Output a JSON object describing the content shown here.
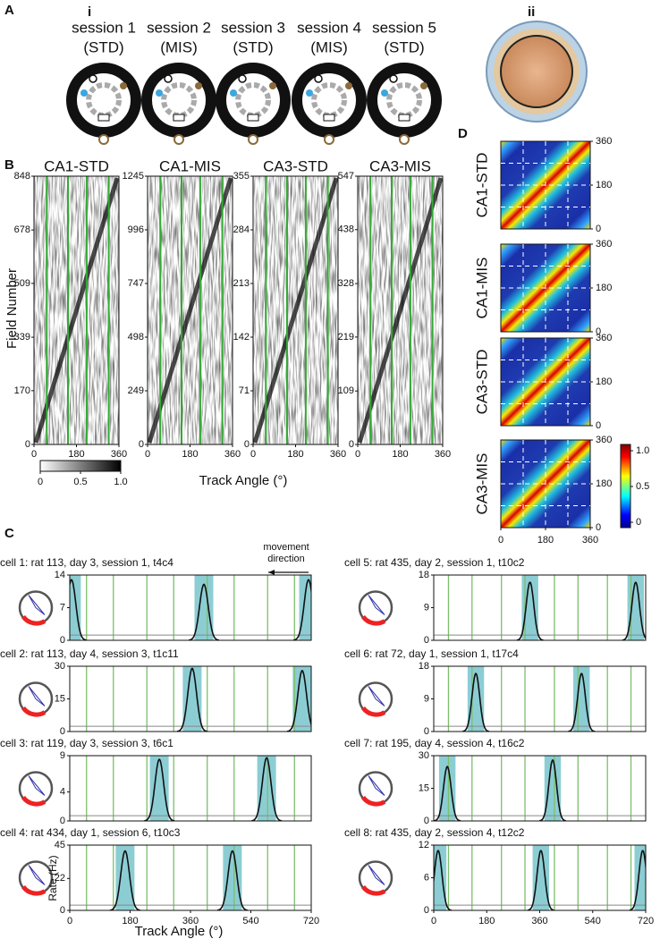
{
  "panel_labels": [
    "A",
    "B",
    "C",
    "D"
  ],
  "sub_labels": [
    "i",
    "ii"
  ],
  "panel_a": {
    "sessions": [
      {
        "name": "session 1",
        "condition": "(STD)"
      },
      {
        "name": "session 2",
        "condition": "(MIS)"
      },
      {
        "name": "session 3",
        "condition": "(STD)"
      },
      {
        "name": "session 4",
        "condition": "(MIS)"
      },
      {
        "name": "session 5",
        "condition": "(STD)"
      }
    ]
  },
  "panel_b": {
    "y_label": "Field Number",
    "x_label": "Track Angle (°)",
    "xticks": [
      0,
      180,
      360
    ],
    "rasters": [
      {
        "title": "CA1-STD",
        "yticks": [
          0,
          170,
          339,
          509,
          678,
          848
        ]
      },
      {
        "title": "CA1-MIS",
        "yticks": [
          0,
          249,
          498,
          747,
          996,
          1245
        ]
      },
      {
        "title": "CA3-STD",
        "yticks": [
          0,
          71,
          142,
          213,
          284,
          355
        ]
      },
      {
        "title": "CA3-MIS",
        "yticks": [
          0,
          109,
          219,
          328,
          438,
          547
        ]
      }
    ],
    "colorbar_ticks": [
      0,
      0.5,
      {
        "value": 1,
        "label": "1.0"
      }
    ]
  },
  "panel_d": {
    "maps": [
      {
        "label": "CA1-STD"
      },
      {
        "label": "CA1-MIS"
      },
      {
        "label": "CA3-STD"
      },
      {
        "label": "CA3-MIS"
      }
    ],
    "ticks": [
      0,
      180,
      360
    ],
    "colorbar_ticks": [
      0,
      0.5,
      {
        "value": 1,
        "label": "1.0"
      }
    ]
  },
  "panel_c": {
    "movement_label": [
      "movement",
      "direction"
    ],
    "y_label": "Rate (Hz)",
    "x_label": "Track Angle (°)",
    "xticks": [
      0,
      180,
      360,
      540,
      720
    ],
    "cells": [
      {
        "title": "cell 1: rat 113, day 3, session 1, t4c4",
        "yticks": [
          0,
          7,
          14
        ],
        "fields": [
          {
            "center": 5,
            "rate": 13
          },
          {
            "center": 400,
            "rate": 12
          },
          {
            "center": 712,
            "rate": 13
          }
        ]
      },
      {
        "title": "cell 2: rat 113, day 4, session 3, t1c11",
        "yticks": [
          0,
          15,
          30
        ],
        "fields": [
          {
            "center": 365,
            "rate": 29
          },
          {
            "center": 693,
            "rate": 28
          }
        ]
      },
      {
        "title": "cell 3: rat 119, day 3, session 3, t6c1",
        "yticks": [
          0,
          4,
          9
        ],
        "fields": [
          {
            "center": 267,
            "rate": 8.5
          },
          {
            "center": 587,
            "rate": 8.7
          }
        ]
      },
      {
        "title": "cell 4: rat 434, day 1, session 6, t10c3",
        "yticks": [
          0,
          22,
          45
        ],
        "fields": [
          {
            "center": 165,
            "rate": 41
          },
          {
            "center": 485,
            "rate": 41
          }
        ]
      },
      {
        "title": "cell 5: rat 435, day 2, session 1, t10c2",
        "yticks": [
          0,
          9,
          18
        ],
        "fields": [
          {
            "center": 327,
            "rate": 16
          },
          {
            "center": 686,
            "rate": 16
          }
        ]
      },
      {
        "title": "cell 6: rat 72, day 1, session 1, t17c4",
        "yticks": [
          0,
          9,
          18
        ],
        "fields": [
          {
            "center": 143,
            "rate": 16
          },
          {
            "center": 502,
            "rate": 16
          }
        ]
      },
      {
        "title": "cell 7: rat 195, day 4, session 4, t16c2",
        "yticks": [
          0,
          15,
          30
        ],
        "fields": [
          {
            "center": 46,
            "rate": 25
          },
          {
            "center": 404,
            "rate": 28
          }
        ]
      },
      {
        "title": "cell 8: rat 435, day 2, session 4, t12c2",
        "yticks": [
          0,
          6,
          12
        ],
        "fields": [
          {
            "center": 15,
            "rate": 11
          },
          {
            "center": 364,
            "rate": 11
          },
          {
            "center": 710,
            "rate": 11
          }
        ]
      }
    ]
  }
}
